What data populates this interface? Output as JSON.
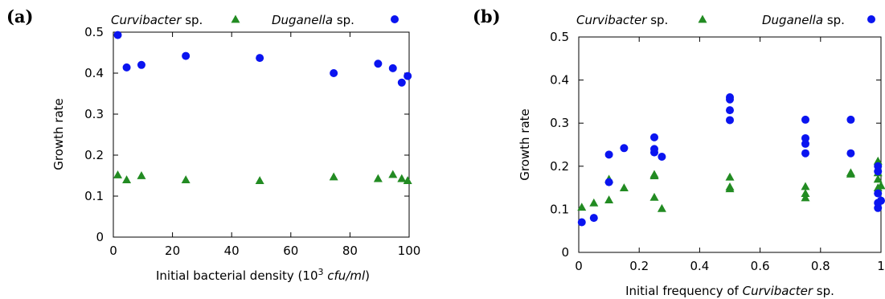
{
  "colors": {
    "curvibacter": "#228B22",
    "duganella": "#0A14F0"
  },
  "chart_data": [
    {
      "type": "scatter",
      "panel_label": "(a)",
      "xlabel_prefix": "Initial bacterial density (10",
      "xlabel_sup": "3",
      "xlabel_unit": "cfu/ml",
      "xlabel_suffix": ")",
      "ylabel": "Growth rate",
      "xlim": [
        0,
        100
      ],
      "ylim": [
        0,
        0.5
      ],
      "x_ticks": [
        "0",
        "20",
        "40",
        "60",
        "80",
        "100"
      ],
      "y_ticks": [
        "0",
        "0.1",
        "0.2",
        "0.3",
        "0.4",
        "0.5"
      ],
      "grid": false,
      "legend_placement": "top",
      "series": [
        {
          "name_italic": "Curvibacter",
          "name_rest": " sp.",
          "marker": "triangle",
          "points": [
            [
              1.5,
              0.152
            ],
            [
              4.5,
              0.14
            ],
            [
              9.5,
              0.15
            ],
            [
              24.5,
              0.14
            ],
            [
              49.5,
              0.138
            ],
            [
              74.5,
              0.147
            ],
            [
              89.5,
              0.143
            ],
            [
              94.5,
              0.153
            ],
            [
              97.5,
              0.143
            ],
            [
              99.5,
              0.138
            ]
          ]
        },
        {
          "name_italic": "Duganella",
          "name_rest": " sp.",
          "marker": "circle",
          "points": [
            [
              1.5,
              0.493
            ],
            [
              4.5,
              0.414
            ],
            [
              9.5,
              0.42
            ],
            [
              24.5,
              0.442
            ],
            [
              49.5,
              0.437
            ],
            [
              74.5,
              0.4
            ],
            [
              89.5,
              0.423
            ],
            [
              94.5,
              0.412
            ],
            [
              97.5,
              0.377
            ],
            [
              99.5,
              0.393
            ]
          ]
        }
      ]
    },
    {
      "type": "scatter",
      "panel_label": "(b)",
      "xlabel_prefix": "Initial frequency of ",
      "xlabel_italic": "Curvibacter",
      "xlabel_suffix": " sp.",
      "ylabel": "Growth rate",
      "xlim": [
        0,
        1
      ],
      "ylim": [
        0,
        0.5
      ],
      "x_ticks": [
        "0",
        "0.2",
        "0.4",
        "0.6",
        "0.8",
        "1"
      ],
      "y_ticks": [
        "0",
        "0.1",
        "0.2",
        "0.3",
        "0.4",
        "0.5"
      ],
      "grid": false,
      "legend_placement": "top",
      "series": [
        {
          "name_italic": "Curvibacter",
          "name_rest": " sp.",
          "marker": "triangle",
          "points": [
            [
              0.01,
              0.105
            ],
            [
              0.05,
              0.115
            ],
            [
              0.1,
              0.122
            ],
            [
              0.1,
              0.17
            ],
            [
              0.15,
              0.15
            ],
            [
              0.25,
              0.128
            ],
            [
              0.25,
              0.178
            ],
            [
              0.25,
              0.181
            ],
            [
              0.275,
              0.102
            ],
            [
              0.5,
              0.148
            ],
            [
              0.5,
              0.152
            ],
            [
              0.5,
              0.175
            ],
            [
              0.75,
              0.127
            ],
            [
              0.75,
              0.137
            ],
            [
              0.75,
              0.153
            ],
            [
              0.9,
              0.182
            ],
            [
              0.9,
              0.185
            ],
            [
              0.99,
              0.15
            ],
            [
              0.99,
              0.17
            ],
            [
              0.99,
              0.185
            ],
            [
              0.99,
              0.212
            ],
            [
              1.0,
              0.155
            ]
          ]
        },
        {
          "name_italic": "Duganella",
          "name_rest": " sp.",
          "marker": "circle",
          "points": [
            [
              0.01,
              0.07
            ],
            [
              0.05,
              0.08
            ],
            [
              0.1,
              0.163
            ],
            [
              0.1,
              0.227
            ],
            [
              0.15,
              0.242
            ],
            [
              0.25,
              0.232
            ],
            [
              0.25,
              0.24
            ],
            [
              0.25,
              0.267
            ],
            [
              0.275,
              0.222
            ],
            [
              0.5,
              0.307
            ],
            [
              0.5,
              0.33
            ],
            [
              0.5,
              0.355
            ],
            [
              0.5,
              0.36
            ],
            [
              0.75,
              0.23
            ],
            [
              0.75,
              0.252
            ],
            [
              0.75,
              0.265
            ],
            [
              0.75,
              0.308
            ],
            [
              0.9,
              0.23
            ],
            [
              0.9,
              0.308
            ],
            [
              0.99,
              0.103
            ],
            [
              0.99,
              0.115
            ],
            [
              0.99,
              0.137
            ],
            [
              0.99,
              0.188
            ],
            [
              0.99,
              0.2
            ],
            [
              1.0,
              0.12
            ]
          ]
        }
      ]
    }
  ]
}
